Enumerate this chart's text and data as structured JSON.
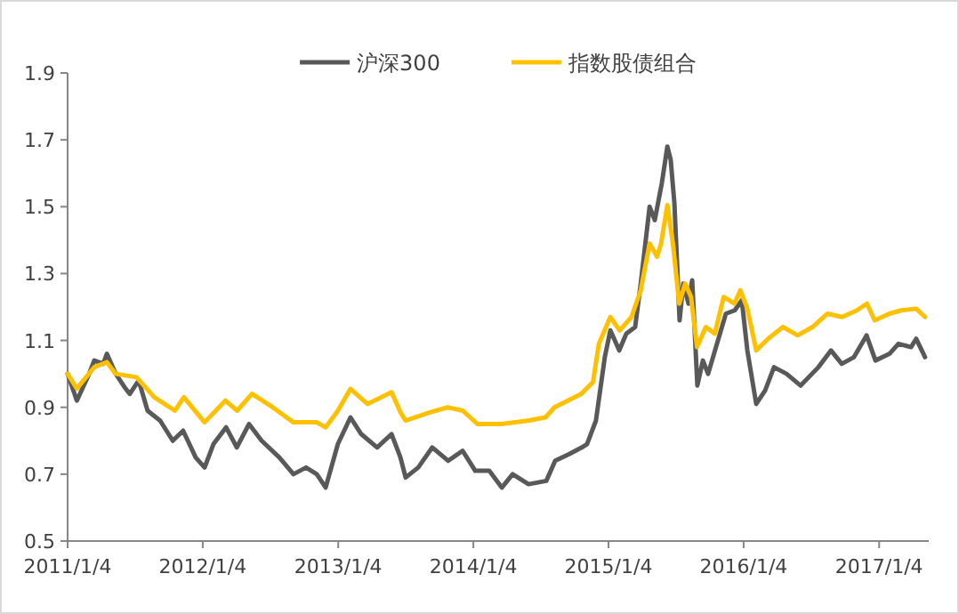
{
  "chart_data": {
    "type": "line",
    "legend": "top",
    "xlim": [
      "2011-01-04",
      "2017-05-18"
    ],
    "ylim": [
      0.5,
      1.9
    ],
    "yticks": [
      0.5,
      0.7,
      0.9,
      1.1,
      1.3,
      1.5,
      1.7,
      1.9
    ],
    "xticks": [
      {
        "value": "2011-01-04",
        "label": "2011/1/4"
      },
      {
        "value": "2012-01-04",
        "label": "2012/1/4"
      },
      {
        "value": "2013-01-04",
        "label": "2013/1/4"
      },
      {
        "value": "2014-01-04",
        "label": "2014/1/4"
      },
      {
        "value": "2015-01-04",
        "label": "2015/1/4"
      },
      {
        "value": "2016-01-04",
        "label": "2016/1/4"
      },
      {
        "value": "2017-01-04",
        "label": "2017/1/4"
      }
    ],
    "series": [
      {
        "name": "沪深300",
        "color": "#595959",
        "x": [
          "2011-01-04",
          "2011-01-29",
          "2011-03-03",
          "2011-03-17",
          "2011-04-10",
          "2011-04-20",
          "2011-05-14",
          "2011-06-07",
          "2011-06-21",
          "2011-07-15",
          "2011-08-08",
          "2011-09-11",
          "2011-10-15",
          "2011-11-12",
          "2011-12-16",
          "2012-01-09",
          "2012-02-02",
          "2012-03-07",
          "2012-04-05",
          "2012-05-08",
          "2012-06-11",
          "2012-07-29",
          "2012-09-05",
          "2012-10-09",
          "2012-11-07",
          "2012-12-01",
          "2013-01-03",
          "2013-02-06",
          "2013-03-07",
          "2013-04-19",
          "2013-05-28",
          "2013-06-21",
          "2013-07-05",
          "2013-08-08",
          "2013-09-15",
          "2013-10-28",
          "2013-12-06",
          "2014-01-09",
          "2014-02-16",
          "2014-03-22",
          "2014-04-20",
          "2014-06-02",
          "2014-07-20",
          "2014-08-13",
          "2014-09-20",
          "2014-10-24",
          "2014-11-07",
          "2014-12-01",
          "2014-12-25",
          "2015-01-09",
          "2015-02-02",
          "2015-02-21",
          "2015-03-17",
          "2015-04-01",
          "2015-04-25",
          "2015-05-09",
          "2015-05-28",
          "2015-06-12",
          "2015-06-21",
          "2015-07-01",
          "2015-07-15",
          "2015-07-25",
          "2015-08-08",
          "2015-08-18",
          "2015-09-01",
          "2015-09-16",
          "2015-09-30",
          "2015-10-24",
          "2015-11-17",
          "2015-12-11",
          "2015-12-30",
          "2016-01-14",
          "2016-02-07",
          "2016-03-02",
          "2016-03-26",
          "2016-04-29",
          "2016-06-06",
          "2016-07-24",
          "2016-08-27",
          "2016-09-25",
          "2016-10-28",
          "2016-12-01",
          "2016-12-25",
          "2017-02-01",
          "2017-02-25",
          "2017-03-31",
          "2017-04-14",
          "2017-05-08"
        ],
        "values": [
          1.0,
          0.92,
          1.0,
          1.04,
          1.03,
          1.06,
          1.0,
          0.96,
          0.94,
          0.98,
          0.89,
          0.86,
          0.8,
          0.83,
          0.75,
          0.72,
          0.79,
          0.84,
          0.78,
          0.85,
          0.8,
          0.75,
          0.7,
          0.72,
          0.7,
          0.66,
          0.79,
          0.87,
          0.82,
          0.78,
          0.82,
          0.75,
          0.69,
          0.72,
          0.78,
          0.74,
          0.77,
          0.71,
          0.71,
          0.66,
          0.7,
          0.67,
          0.68,
          0.74,
          0.76,
          0.78,
          0.79,
          0.86,
          1.05,
          1.13,
          1.07,
          1.12,
          1.14,
          1.27,
          1.5,
          1.46,
          1.57,
          1.68,
          1.64,
          1.51,
          1.16,
          1.27,
          1.21,
          1.28,
          0.965,
          1.04,
          1.0,
          1.09,
          1.18,
          1.19,
          1.22,
          1.07,
          0.91,
          0.95,
          1.02,
          1.0,
          0.965,
          1.02,
          1.07,
          1.03,
          1.05,
          1.115,
          1.04,
          1.06,
          1.09,
          1.08,
          1.105,
          1.05
        ]
      },
      {
        "name": "指数股债组合",
        "color": "#ffc000",
        "x": [
          "2011-01-04",
          "2011-01-29",
          "2011-03-17",
          "2011-04-20",
          "2011-05-14",
          "2011-07-09",
          "2011-08-26",
          "2011-10-21",
          "2011-11-14",
          "2012-01-09",
          "2012-03-05",
          "2012-04-06",
          "2012-05-16",
          "2012-07-11",
          "2012-09-05",
          "2012-11-07",
          "2012-12-01",
          "2013-01-03",
          "2013-02-06",
          "2013-03-24",
          "2013-05-28",
          "2013-06-21",
          "2013-07-05",
          "2013-09-09",
          "2013-10-27",
          "2013-12-06",
          "2014-01-15",
          "2014-03-20",
          "2014-05-31",
          "2014-07-18",
          "2014-08-11",
          "2014-10-22",
          "2014-11-23",
          "2014-12-09",
          "2015-01-09",
          "2015-02-03",
          "2015-03-07",
          "2015-04-01",
          "2015-04-25",
          "2015-05-15",
          "2015-05-26",
          "2015-06-12",
          "2015-06-27",
          "2015-07-14",
          "2015-07-30",
          "2015-08-15",
          "2015-08-31",
          "2015-09-24",
          "2015-10-18",
          "2015-11-11",
          "2015-12-10",
          "2015-12-26",
          "2016-01-14",
          "2016-02-07",
          "2016-03-10",
          "2016-04-19",
          "2016-05-29",
          "2016-07-08",
          "2016-08-17",
          "2016-09-26",
          "2016-11-05",
          "2016-12-02",
          "2016-12-23",
          "2017-02-01",
          "2017-03-05",
          "2017-04-14",
          "2017-05-08"
        ],
        "values": [
          1.0,
          0.956,
          1.02,
          1.035,
          1.0,
          0.99,
          0.93,
          0.89,
          0.93,
          0.855,
          0.92,
          0.89,
          0.94,
          0.9,
          0.855,
          0.855,
          0.84,
          0.89,
          0.955,
          0.91,
          0.945,
          0.885,
          0.86,
          0.885,
          0.9,
          0.89,
          0.85,
          0.85,
          0.86,
          0.87,
          0.9,
          0.94,
          0.975,
          1.09,
          1.17,
          1.13,
          1.17,
          1.25,
          1.39,
          1.35,
          1.39,
          1.505,
          1.39,
          1.21,
          1.27,
          1.23,
          1.08,
          1.14,
          1.12,
          1.23,
          1.21,
          1.25,
          1.195,
          1.07,
          1.105,
          1.14,
          1.115,
          1.14,
          1.18,
          1.17,
          1.19,
          1.21,
          1.16,
          1.18,
          1.19,
          1.195,
          1.17
        ]
      }
    ]
  }
}
